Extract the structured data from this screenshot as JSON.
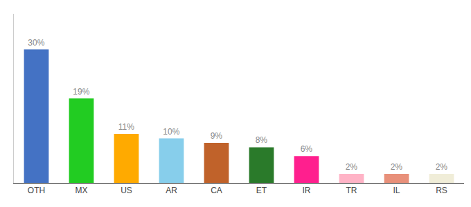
{
  "chart_data": {
    "type": "bar",
    "categories": [
      "OTH",
      "MX",
      "US",
      "AR",
      "CA",
      "ET",
      "IR",
      "TR",
      "IL",
      "RS"
    ],
    "values": [
      30,
      19,
      11,
      10,
      9,
      8,
      6,
      2,
      2,
      2
    ],
    "value_labels": [
      "30%",
      "19%",
      "11%",
      "10%",
      "9%",
      "8%",
      "6%",
      "2%",
      "2%",
      "2%"
    ],
    "colors": [
      "#4472c4",
      "#22cc22",
      "#ffaa00",
      "#87ceeb",
      "#c0622a",
      "#2a7a2a",
      "#ff1f8e",
      "#ffb3c6",
      "#e8907a",
      "#f0edd8"
    ],
    "ylim": [
      0,
      38
    ],
    "grid": false,
    "data_labels": true,
    "tick_labels": "x"
  }
}
